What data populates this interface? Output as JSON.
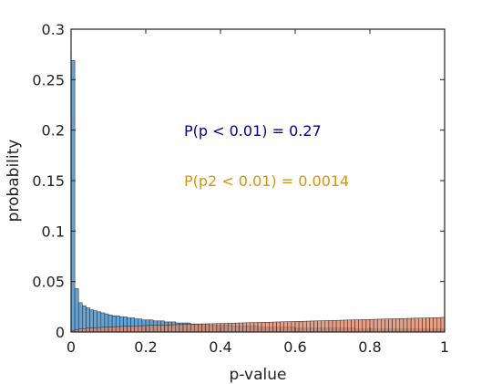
{
  "chart_data": {
    "type": "bar",
    "xlabel": "p-value",
    "ylabel": "probability",
    "xlim": [
      0,
      1
    ],
    "ylim": [
      0,
      0.3
    ],
    "xticks": [
      "0",
      "0.2",
      "0.4",
      "0.6",
      "0.8",
      "1"
    ],
    "yticks": [
      "0",
      "0.05",
      "0.1",
      "0.15",
      "0.2",
      "0.25",
      "0.3"
    ],
    "grid": false,
    "bin_width": 0.01,
    "series": [
      {
        "fill": "#5a9fd6",
        "values": [
          0.269,
          0.043,
          0.029,
          0.026,
          0.024,
          0.022,
          0.021,
          0.02,
          0.019,
          0.018,
          0.017,
          0.016,
          0.016,
          0.015,
          0.015,
          0.014,
          0.014,
          0.013,
          0.013,
          0.012,
          0.012,
          0.012,
          0.011,
          0.011,
          0.011,
          0.01,
          0.01,
          0.01,
          0.009,
          0.009,
          0.009,
          0.009,
          0.008,
          0.008,
          0.008,
          0.008,
          0.008,
          0.007,
          0.007,
          0.007,
          0.007,
          0.007,
          0.007,
          0.006,
          0.006,
          0.006,
          0.006,
          0.006,
          0.006,
          0.006,
          0.005,
          0.005,
          0.005,
          0.005,
          0.005,
          0.005,
          0.005,
          0.005,
          0.005,
          0.005,
          0.004,
          0.004,
          0.004,
          0.004,
          0.004,
          0.004,
          0.004,
          0.004,
          0.004,
          0.004,
          0.004,
          0.004,
          0.004,
          0.004,
          0.004,
          0.004,
          0.003,
          0.003,
          0.003,
          0.003,
          0.003,
          0.003,
          0.003,
          0.003,
          0.003,
          0.003,
          0.003,
          0.003,
          0.003,
          0.003,
          0.003,
          0.003,
          0.003,
          0.003,
          0.003,
          0.003,
          0.003,
          0.003,
          0.003,
          0.003
        ]
      },
      {
        "fill": "#e0886a",
        "values": [
          0.0014,
          0.0025,
          0.0031,
          0.0034,
          0.0038,
          0.004,
          0.0043,
          0.0045,
          0.0047,
          0.0049,
          0.0051,
          0.0052,
          0.0054,
          0.0055,
          0.0057,
          0.0058,
          0.0059,
          0.0061,
          0.0062,
          0.0063,
          0.0064,
          0.0066,
          0.0067,
          0.0068,
          0.0069,
          0.007,
          0.0071,
          0.0072,
          0.0073,
          0.0074,
          0.0075,
          0.0076,
          0.0077,
          0.0078,
          0.0079,
          0.008,
          0.0081,
          0.0082,
          0.0083,
          0.0084,
          0.0085,
          0.0086,
          0.0087,
          0.0088,
          0.0089,
          0.009,
          0.0091,
          0.0092,
          0.0093,
          0.0094,
          0.0095,
          0.0096,
          0.0097,
          0.0098,
          0.0099,
          0.01,
          0.0101,
          0.0102,
          0.0103,
          0.0104,
          0.0105,
          0.0106,
          0.0107,
          0.0108,
          0.0109,
          0.011,
          0.0111,
          0.0112,
          0.0113,
          0.0114,
          0.0115,
          0.0116,
          0.0117,
          0.0118,
          0.0119,
          0.012,
          0.0121,
          0.0122,
          0.0123,
          0.0124,
          0.0125,
          0.0126,
          0.0127,
          0.0128,
          0.0129,
          0.013,
          0.0131,
          0.0132,
          0.0133,
          0.0134,
          0.0135,
          0.0136,
          0.0137,
          0.0138,
          0.0139,
          0.014,
          0.0141,
          0.0142,
          0.0143,
          0.0145
        ]
      }
    ],
    "annotations": [
      {
        "text": "P(p < 0.01) =  0.27",
        "color": "#00008b"
      },
      {
        "text": "P(p2 < 0.01) =  0.0014",
        "color": "#d4960a"
      }
    ]
  }
}
